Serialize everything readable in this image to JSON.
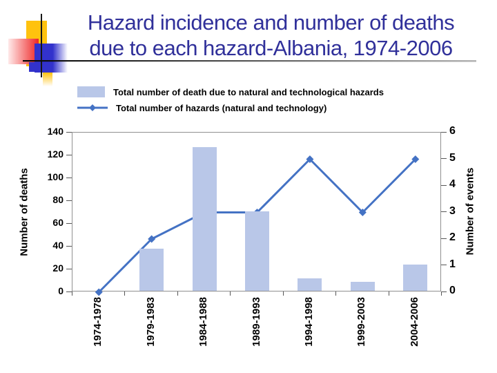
{
  "slide": {
    "title_line1": "Hazard incidence and number of deaths",
    "title_line2": "due to each hazard-Albania, 1974-2006",
    "title_color": "#30309a"
  },
  "legend": {
    "items": [
      {
        "label": "Total number of death due to natural and technological hazards",
        "swatch": "bar-swatch",
        "color": "#b9c7e8"
      },
      {
        "label": "Total number of hazards (natural and technology)",
        "swatch": "line-swatch",
        "color": "#4472c4"
      }
    ]
  },
  "chart_data": {
    "type": "bar",
    "subtype": "bar+line combo, dual axis",
    "title": "Hazard incidence and number of deaths due to each hazard-Albania, 1974-2006",
    "categories": [
      "1974-1978",
      "1979-1983",
      "1984-1988",
      "1989-1993",
      "1994-1998",
      "1999-2003",
      "2004-2006"
    ],
    "series": [
      {
        "name": "Total number of death due to natural and technological hazards",
        "type": "bar",
        "axis": "left",
        "color": "#b9c7e8",
        "values": [
          0,
          37,
          126,
          70,
          11,
          8,
          23
        ]
      },
      {
        "name": "Total number of hazards (natural and technology)",
        "type": "line",
        "axis": "right",
        "color": "#4472c4",
        "marker": "diamond",
        "values": [
          0,
          2,
          3,
          3,
          5,
          3,
          5
        ]
      }
    ],
    "ylabel_left": "Number of deaths",
    "ylabel_right": "Number of events",
    "yleft": {
      "min": 0,
      "max": 140,
      "step": 20
    },
    "yright": {
      "min": 0,
      "max": 6,
      "step": 1
    },
    "yleft_ticks": [
      0,
      20,
      40,
      60,
      80,
      100,
      120,
      140
    ],
    "yright_ticks": [
      0,
      1,
      2,
      3,
      4,
      5,
      6
    ],
    "grid": false,
    "legend_position": "top-left"
  }
}
